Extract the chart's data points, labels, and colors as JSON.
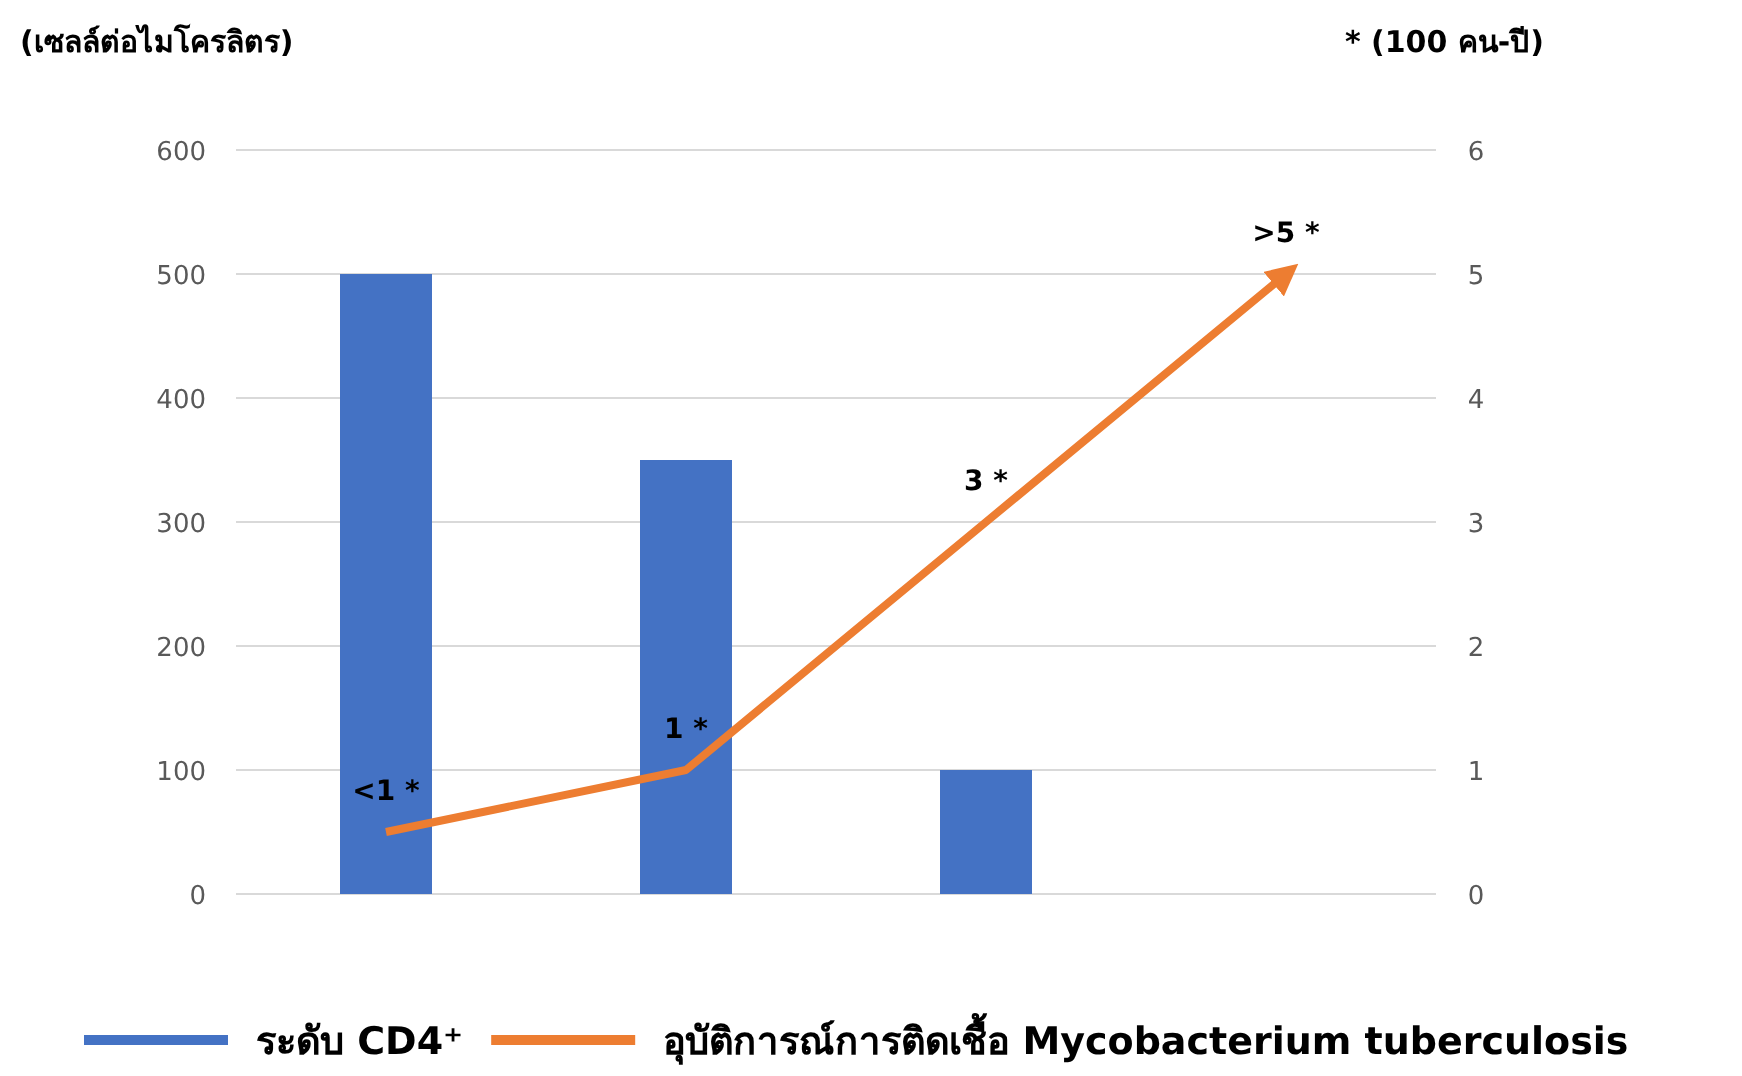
{
  "chart_data": {
    "type": "bar",
    "ylabel": "(เซลล์ต่อไมโครลิตร)",
    "y2label": "* (100 คน-ปี)",
    "categories": [
      null,
      null,
      null,
      null
    ],
    "series": [
      {
        "name": "ระดับ CD4⁺",
        "color": "#4472c4",
        "values": [
          500,
          350,
          100,
          null
        ]
      },
      {
        "name": "อุบัติการณ์การติดเชื้อ Mycobacterium tuberculosis",
        "type": "line",
        "axis": "y2",
        "color": "#ed7d31",
        "values": [
          0.5,
          1,
          3,
          5
        ],
        "value_labels": [
          "<1 *",
          "1 *",
          "3 *",
          ">5 *"
        ]
      }
    ],
    "ylim": [
      0,
      600
    ],
    "yticks": [
      0,
      100,
      200,
      300,
      400,
      500,
      600
    ],
    "y2lim": [
      0,
      6
    ],
    "y2ticks": [
      0,
      1,
      2,
      3,
      4,
      5,
      6
    ],
    "grid": "y",
    "legend": "bottom",
    "marker": "none",
    "line_style": "solid"
  }
}
